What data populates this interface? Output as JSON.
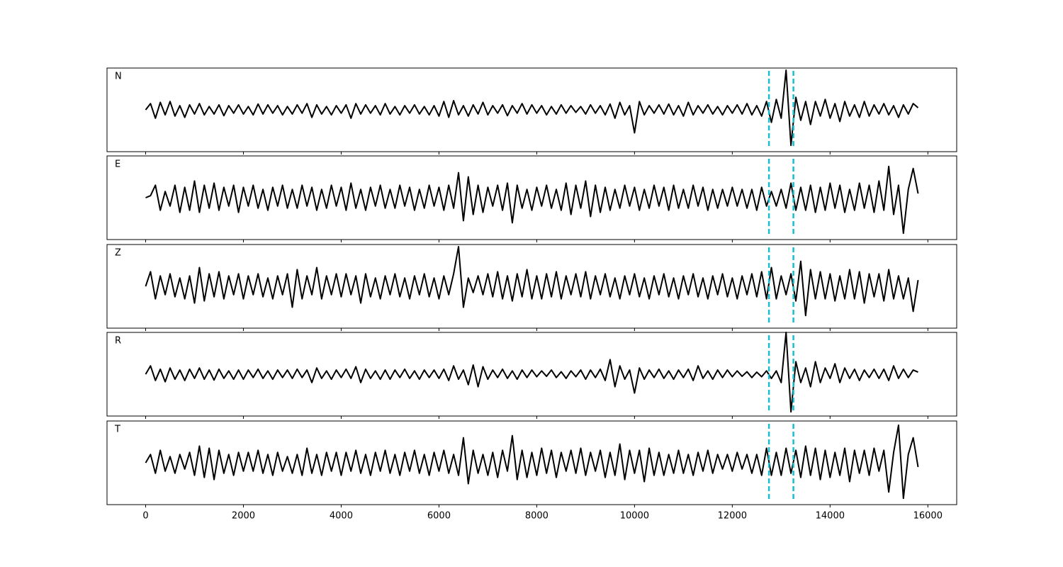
{
  "chart_data": {
    "type": "line",
    "x": [
      0,
      100,
      200,
      300,
      400,
      500,
      600,
      700,
      800,
      900,
      1000,
      1100,
      1200,
      1300,
      1400,
      1500,
      1600,
      1700,
      1800,
      1900,
      2000,
      2100,
      2200,
      2300,
      2400,
      2500,
      2600,
      2700,
      2800,
      2900,
      3000,
      3100,
      3200,
      3300,
      3400,
      3500,
      3600,
      3700,
      3800,
      3900,
      4000,
      4100,
      4200,
      4300,
      4400,
      4500,
      4600,
      4700,
      4800,
      4900,
      5000,
      5100,
      5200,
      5300,
      5400,
      5500,
      5600,
      5700,
      5800,
      5900,
      6000,
      6100,
      6200,
      6300,
      6400,
      6500,
      6600,
      6700,
      6800,
      6900,
      7000,
      7100,
      7200,
      7300,
      7400,
      7500,
      7600,
      7700,
      7800,
      7900,
      8000,
      8100,
      8200,
      8300,
      8400,
      8500,
      8600,
      8700,
      8800,
      8900,
      9000,
      9100,
      9200,
      9300,
      9400,
      9500,
      9600,
      9700,
      9800,
      9900,
      10000,
      10100,
      10200,
      10300,
      10400,
      10500,
      10600,
      10700,
      10800,
      10900,
      11000,
      11100,
      11200,
      11300,
      11400,
      11500,
      11600,
      11700,
      11800,
      11900,
      12000,
      12100,
      12200,
      12300,
      12400,
      12500,
      12600,
      12700,
      12800,
      12900,
      13000,
      13100,
      13200,
      13300,
      13400,
      13500,
      13600,
      13700,
      13800,
      13900,
      14000,
      14100,
      14200,
      14300,
      14400,
      14500,
      14600,
      14700,
      14800,
      14900,
      15000,
      15100,
      15200,
      15300,
      15400,
      15500,
      15600,
      15700,
      15800
    ],
    "xlim": [
      -790,
      16590
    ],
    "xticks": [
      0,
      2000,
      4000,
      6000,
      8000,
      10000,
      12000,
      14000,
      16000
    ],
    "color": "#000000",
    "vlines": [
      12750,
      13250
    ],
    "vline_color": "#17becf",
    "panels": [
      {
        "label": "N",
        "ylim": [
          -1,
          1
        ],
        "values": [
          0,
          0.15,
          -0.2,
          0.18,
          -0.12,
          0.2,
          -0.15,
          0.1,
          -0.18,
          0.12,
          -0.1,
          0.15,
          -0.12,
          0.08,
          -0.1,
          0.12,
          -0.14,
          0.1,
          -0.08,
          0.12,
          -0.1,
          0.08,
          -0.12,
          0.14,
          -0.1,
          0.12,
          -0.08,
          0.1,
          -0.12,
          0.08,
          -0.1,
          0.12,
          -0.08,
          0.15,
          -0.18,
          0.12,
          -0.1,
          0.08,
          -0.12,
          0.1,
          -0.08,
          0.12,
          -0.2,
          0.15,
          -0.1,
          0.12,
          -0.08,
          0.1,
          -0.12,
          0.15,
          -0.1,
          0.08,
          -0.12,
          0.1,
          -0.08,
          0.12,
          -0.1,
          0.08,
          -0.12,
          0.1,
          -0.15,
          0.2,
          -0.18,
          0.22,
          -0.12,
          0.1,
          -0.15,
          0.12,
          -0.1,
          0.18,
          -0.12,
          0.1,
          -0.08,
          0.12,
          -0.14,
          0.1,
          -0.08,
          0.15,
          -0.1,
          0.12,
          -0.08,
          0.1,
          -0.12,
          0.08,
          -0.1,
          0.12,
          -0.08,
          0.1,
          -0.06,
          0.08,
          -0.1,
          0.12,
          -0.08,
          0.1,
          -0.12,
          0.14,
          -0.2,
          0.18,
          -0.12,
          0.1,
          -0.55,
          0.2,
          -0.12,
          0.1,
          -0.08,
          0.12,
          -0.1,
          0.14,
          -0.12,
          0.1,
          -0.15,
          0.18,
          -0.12,
          0.1,
          -0.08,
          0.12,
          -0.1,
          0.08,
          -0.12,
          0.1,
          -0.08,
          0.12,
          -0.1,
          0.15,
          -0.12,
          0.1,
          -0.15,
          0.2,
          -0.3,
          0.25,
          -0.2,
          0.95,
          -0.85,
          0.3,
          -0.25,
          0.2,
          -0.35,
          0.2,
          -0.15,
          0.25,
          -0.2,
          0.15,
          -0.28,
          0.2,
          -0.15,
          0.12,
          -0.18,
          0.2,
          -0.15,
          0.12,
          -0.1,
          0.15,
          -0.12,
          0.1,
          -0.18,
          0.12,
          -0.1,
          0.15,
          0.05
        ]
      },
      {
        "label": "E",
        "ylim": [
          -1,
          1
        ],
        "values": [
          0,
          0.05,
          0.3,
          -0.3,
          0.15,
          -0.2,
          0.3,
          -0.35,
          0.25,
          -0.3,
          0.4,
          -0.35,
          0.3,
          -0.25,
          0.35,
          -0.3,
          0.25,
          -0.2,
          0.3,
          -0.35,
          0.25,
          -0.2,
          0.3,
          -0.25,
          0.2,
          -0.3,
          0.25,
          -0.2,
          0.3,
          -0.25,
          0.2,
          -0.25,
          0.3,
          -0.2,
          0.25,
          -0.3,
          0.2,
          -0.25,
          0.3,
          -0.2,
          0.25,
          -0.3,
          0.35,
          -0.25,
          0.2,
          -0.3,
          0.25,
          -0.2,
          0.3,
          -0.25,
          0.2,
          -0.25,
          0.3,
          -0.2,
          0.25,
          -0.3,
          0.2,
          -0.25,
          0.3,
          -0.2,
          0.25,
          -0.3,
          0.3,
          -0.25,
          0.6,
          -0.55,
          0.5,
          -0.4,
          0.3,
          -0.35,
          0.25,
          -0.2,
          0.3,
          -0.3,
          0.35,
          -0.6,
          0.3,
          -0.25,
          0.2,
          -0.3,
          0.25,
          -0.2,
          0.3,
          -0.25,
          0.2,
          -0.3,
          0.35,
          -0.4,
          0.3,
          -0.25,
          0.4,
          -0.45,
          0.3,
          -0.35,
          0.25,
          -0.3,
          0.2,
          -0.25,
          0.3,
          -0.2,
          0.25,
          -0.3,
          0.2,
          -0.25,
          0.3,
          -0.2,
          0.25,
          -0.3,
          0.3,
          -0.25,
          0.2,
          -0.25,
          0.3,
          -0.2,
          0.25,
          -0.3,
          0.2,
          -0.25,
          0.2,
          -0.2,
          0.25,
          -0.2,
          0.2,
          -0.25,
          0.2,
          -0.3,
          0.25,
          -0.2,
          0.15,
          -0.2,
          0.2,
          -0.25,
          0.35,
          -0.3,
          0.25,
          -0.3,
          0.3,
          -0.35,
          0.25,
          -0.3,
          0.35,
          -0.25,
          0.3,
          -0.35,
          0.2,
          -0.3,
          0.35,
          -0.25,
          0.3,
          -0.35,
          0.4,
          -0.3,
          0.75,
          -0.4,
          0.3,
          -0.85,
          0.2,
          0.7,
          0.1
        ]
      },
      {
        "label": "Z",
        "ylim": [
          -1,
          1
        ],
        "values": [
          0,
          0.35,
          -0.3,
          0.25,
          -0.2,
          0.3,
          -0.25,
          0.2,
          -0.3,
          0.25,
          -0.4,
          0.45,
          -0.35,
          0.3,
          -0.25,
          0.35,
          -0.3,
          0.25,
          -0.2,
          0.3,
          -0.3,
          0.25,
          -0.2,
          0.3,
          -0.25,
          0.2,
          -0.3,
          0.25,
          -0.2,
          0.3,
          -0.5,
          0.4,
          -0.3,
          0.25,
          -0.2,
          0.45,
          -0.3,
          0.25,
          -0.2,
          0.3,
          -0.25,
          0.3,
          -0.2,
          0.25,
          -0.4,
          0.3,
          -0.25,
          0.2,
          -0.3,
          0.25,
          -0.2,
          0.3,
          -0.25,
          0.2,
          -0.3,
          0.25,
          -0.2,
          0.3,
          -0.25,
          0.2,
          -0.3,
          0.25,
          -0.2,
          0.3,
          0.95,
          -0.5,
          0.2,
          -0.15,
          0.25,
          -0.2,
          0.3,
          -0.25,
          0.35,
          -0.3,
          0.25,
          -0.35,
          0.3,
          -0.25,
          0.4,
          -0.3,
          0.25,
          -0.3,
          0.3,
          -0.25,
          0.35,
          -0.3,
          0.25,
          -0.2,
          0.3,
          -0.25,
          0.35,
          -0.3,
          0.25,
          -0.2,
          0.3,
          -0.25,
          0.2,
          -0.3,
          0.25,
          -0.2,
          0.3,
          -0.25,
          0.2,
          -0.3,
          0.25,
          -0.2,
          0.3,
          -0.25,
          0.2,
          -0.3,
          0.25,
          -0.2,
          0.3,
          -0.25,
          0.2,
          -0.3,
          0.25,
          -0.2,
          0.3,
          -0.25,
          0.2,
          -0.3,
          0.25,
          -0.2,
          0.3,
          -0.25,
          0.35,
          -0.3,
          0.45,
          -0.3,
          0.25,
          -0.2,
          0.3,
          -0.35,
          0.6,
          -0.7,
          0.4,
          -0.3,
          0.35,
          -0.3,
          0.3,
          -0.35,
          0.25,
          -0.3,
          0.4,
          -0.3,
          0.35,
          -0.4,
          0.3,
          -0.25,
          0.3,
          -0.35,
          0.4,
          -0.3,
          0.25,
          -0.3,
          0.2,
          -0.6,
          0.15
        ]
      },
      {
        "label": "R",
        "ylim": [
          -1,
          1
        ],
        "values": [
          0,
          0.2,
          -0.15,
          0.12,
          -0.18,
          0.15,
          -0.12,
          0.1,
          -0.15,
          0.12,
          -0.1,
          0.15,
          -0.12,
          0.1,
          -0.14,
          0.12,
          -0.1,
          0.08,
          -0.12,
          0.1,
          -0.12,
          0.1,
          -0.08,
          0.12,
          -0.1,
          0.08,
          -0.12,
          0.1,
          -0.08,
          0.1,
          -0.1,
          0.12,
          -0.08,
          0.1,
          -0.2,
          0.15,
          -0.1,
          0.08,
          -0.12,
          0.1,
          -0.08,
          0.12,
          -0.1,
          0.18,
          -0.2,
          0.12,
          -0.1,
          0.08,
          -0.12,
          0.1,
          -0.12,
          0.1,
          -0.08,
          0.12,
          -0.1,
          0.08,
          -0.12,
          0.1,
          -0.08,
          0.1,
          -0.1,
          0.12,
          -0.15,
          0.2,
          -0.12,
          0.1,
          -0.25,
          0.22,
          -0.3,
          0.18,
          -0.12,
          0.1,
          -0.08,
          0.12,
          -0.1,
          0.08,
          -0.12,
          0.1,
          -0.08,
          0.1,
          -0.06,
          0.08,
          -0.05,
          0.1,
          -0.08,
          0.06,
          -0.1,
          0.08,
          -0.06,
          0.1,
          -0.12,
          0.1,
          -0.08,
          0.12,
          -0.15,
          0.35,
          -0.3,
          0.2,
          -0.12,
          0.1,
          -0.45,
          0.15,
          -0.12,
          0.1,
          -0.08,
          0.12,
          -0.1,
          0.08,
          -0.12,
          0.1,
          -0.08,
          0.12,
          -0.15,
          0.2,
          -0.1,
          0.08,
          -0.12,
          0.1,
          -0.08,
          0.1,
          -0.06,
          0.08,
          -0.05,
          0.06,
          -0.08,
          0.05,
          -0.06,
          0.08,
          -0.1,
          0.08,
          -0.2,
          1.0,
          -0.9,
          0.3,
          -0.2,
          0.15,
          -0.3,
          0.3,
          -0.2,
          0.15,
          -0.1,
          0.25,
          -0.2,
          0.15,
          -0.1,
          0.12,
          -0.15,
          0.1,
          -0.08,
          0.12,
          -0.1,
          0.12,
          -0.15,
          0.2,
          -0.1,
          0.12,
          -0.08,
          0.1,
          0.05
        ]
      },
      {
        "label": "T",
        "ylim": [
          -1,
          1
        ],
        "values": [
          0,
          0.2,
          -0.25,
          0.3,
          -0.2,
          0.15,
          -0.25,
          0.2,
          -0.15,
          0.25,
          -0.3,
          0.4,
          -0.35,
          0.35,
          -0.4,
          0.3,
          -0.25,
          0.2,
          -0.3,
          0.25,
          -0.2,
          0.25,
          -0.2,
          0.3,
          -0.25,
          0.2,
          -0.3,
          0.25,
          -0.2,
          0.15,
          -0.25,
          0.2,
          -0.3,
          0.35,
          -0.25,
          0.2,
          -0.3,
          0.25,
          -0.2,
          0.25,
          -0.3,
          0.25,
          -0.2,
          0.3,
          -0.25,
          0.2,
          -0.3,
          0.25,
          -0.2,
          0.3,
          -0.25,
          0.2,
          -0.3,
          0.25,
          -0.2,
          0.3,
          -0.25,
          0.2,
          -0.3,
          0.25,
          -0.2,
          0.3,
          -0.25,
          0.2,
          -0.3,
          0.6,
          -0.5,
          0.3,
          -0.25,
          0.2,
          -0.3,
          0.25,
          -0.35,
          0.3,
          -0.2,
          0.65,
          -0.4,
          0.3,
          -0.35,
          0.25,
          -0.3,
          0.35,
          -0.25,
          0.3,
          -0.35,
          0.25,
          -0.2,
          0.3,
          -0.25,
          0.35,
          -0.3,
          0.25,
          -0.2,
          0.3,
          -0.35,
          0.25,
          -0.3,
          0.45,
          -0.4,
          0.3,
          -0.25,
          0.3,
          -0.45,
          0.35,
          -0.3,
          0.25,
          -0.3,
          0.2,
          -0.25,
          0.3,
          -0.25,
          0.2,
          -0.3,
          0.25,
          -0.2,
          0.3,
          -0.25,
          0.2,
          -0.15,
          0.2,
          -0.2,
          0.25,
          -0.15,
          0.2,
          -0.25,
          0.2,
          -0.3,
          0.35,
          -0.3,
          0.25,
          -0.3,
          0.35,
          -0.25,
          0.3,
          -0.35,
          0.4,
          -0.3,
          0.35,
          -0.4,
          0.3,
          -0.35,
          0.25,
          -0.3,
          0.35,
          -0.45,
          0.3,
          -0.25,
          0.3,
          -0.3,
          0.35,
          -0.2,
          0.3,
          -0.7,
          0.25,
          0.9,
          -0.85,
          0.2,
          0.6,
          -0.1
        ]
      }
    ]
  }
}
